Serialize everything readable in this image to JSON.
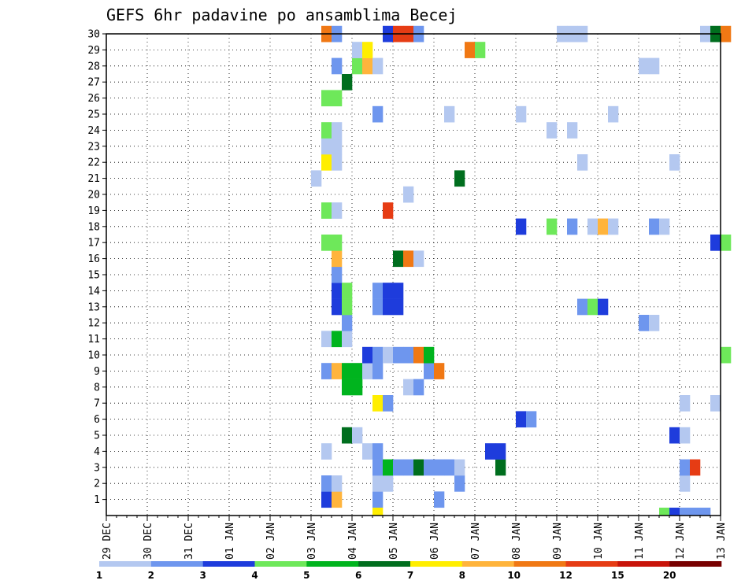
{
  "chart_data": {
    "type": "heatmap",
    "title": "GEFS 6hr padavine po ansamblima Becej",
    "y_labels": [
      "1",
      "2",
      "3",
      "4",
      "5",
      "6",
      "7",
      "8",
      "9",
      "10",
      "11",
      "12",
      "13",
      "14",
      "15",
      "16",
      "17",
      "18",
      "19",
      "20",
      "21",
      "22",
      "23",
      "24",
      "25",
      "26",
      "27",
      "28",
      "29",
      "30"
    ],
    "x_labels": [
      "29 DEC",
      "30 DEC",
      "31 DEC",
      "01 JAN",
      "02 JAN",
      "03 JAN",
      "04 JAN",
      "05 JAN",
      "06 JAN",
      "07 JAN",
      "08 JAN",
      "09 JAN",
      "10 JAN",
      "11 JAN",
      "12 JAN",
      "13 JAN"
    ],
    "x_unit": "6hr steps from 29 DEC 00Z",
    "colorbar": {
      "labels": [
        "1",
        "2",
        "3",
        "4",
        "5",
        "6",
        "7",
        "8",
        "10",
        "12",
        "15",
        "20"
      ],
      "colors": [
        "#b4c8f0",
        "#6e96ee",
        "#1e3cdc",
        "#6ee85a",
        "#00b41e",
        "#006e1e",
        "#ffee00",
        "#ffb43c",
        "#f07814",
        "#e63c14",
        "#c8140a",
        "#780000"
      ]
    },
    "cells": [
      [
        1,
        21,
        2
      ],
      [
        1,
        22,
        7
      ],
      [
        1,
        26,
        1
      ],
      [
        1,
        32,
        1
      ],
      [
        2,
        21,
        1
      ],
      [
        2,
        22,
        0
      ],
      [
        2,
        26,
        0
      ],
      [
        2,
        27,
        0
      ],
      [
        2,
        34,
        1
      ],
      [
        2,
        56,
        0
      ],
      [
        3,
        26,
        1
      ],
      [
        3,
        27,
        4
      ],
      [
        3,
        28,
        1
      ],
      [
        3,
        29,
        1
      ],
      [
        3,
        30,
        5
      ],
      [
        3,
        31,
        1
      ],
      [
        3,
        32,
        1
      ],
      [
        3,
        33,
        1
      ],
      [
        3,
        34,
        0
      ],
      [
        3,
        38,
        5
      ],
      [
        3,
        56,
        1
      ],
      [
        3,
        57,
        9
      ],
      [
        4,
        21,
        0
      ],
      [
        4,
        25,
        0
      ],
      [
        4,
        26,
        1
      ],
      [
        4,
        37,
        2
      ],
      [
        4,
        38,
        2
      ],
      [
        5,
        23,
        5
      ],
      [
        5,
        24,
        0
      ],
      [
        5,
        55,
        2
      ],
      [
        5,
        56,
        0
      ],
      [
        6,
        40,
        2
      ],
      [
        6,
        41,
        1
      ],
      [
        7,
        26,
        6
      ],
      [
        7,
        27,
        1
      ],
      [
        7,
        56,
        0
      ],
      [
        7,
        59,
        0
      ],
      [
        8,
        23,
        4
      ],
      [
        8,
        24,
        4
      ],
      [
        8,
        29,
        0
      ],
      [
        8,
        30,
        1
      ],
      [
        9,
        21,
        1
      ],
      [
        9,
        22,
        7
      ],
      [
        9,
        23,
        4
      ],
      [
        9,
        24,
        4
      ],
      [
        9,
        25,
        0
      ],
      [
        9,
        26,
        1
      ],
      [
        9,
        31,
        1
      ],
      [
        9,
        32,
        8
      ],
      [
        10,
        25,
        2
      ],
      [
        10,
        26,
        1
      ],
      [
        10,
        27,
        0
      ],
      [
        10,
        28,
        1
      ],
      [
        10,
        29,
        1
      ],
      [
        10,
        30,
        8
      ],
      [
        10,
        31,
        4
      ],
      [
        10,
        60,
        3
      ],
      [
        11,
        21,
        0
      ],
      [
        11,
        22,
        4
      ],
      [
        11,
        23,
        0
      ],
      [
        12,
        23,
        1
      ],
      [
        12,
        52,
        1
      ],
      [
        12,
        53,
        0
      ],
      [
        13,
        22,
        2
      ],
      [
        13,
        23,
        3
      ],
      [
        13,
        26,
        1
      ],
      [
        13,
        27,
        2
      ],
      [
        13,
        28,
        2
      ],
      [
        13,
        46,
        1
      ],
      [
        13,
        47,
        3
      ],
      [
        13,
        48,
        2
      ],
      [
        14,
        22,
        2
      ],
      [
        14,
        23,
        3
      ],
      [
        14,
        26,
        1
      ],
      [
        14,
        27,
        2
      ],
      [
        14,
        28,
        2
      ],
      [
        15,
        22,
        1
      ],
      [
        16,
        22,
        7
      ],
      [
        16,
        28,
        5
      ],
      [
        16,
        29,
        8
      ],
      [
        16,
        30,
        0
      ],
      [
        17,
        21,
        3
      ],
      [
        17,
        22,
        3
      ],
      [
        17,
        59,
        2
      ],
      [
        17,
        60,
        3
      ],
      [
        18,
        40,
        2
      ],
      [
        18,
        43,
        3
      ],
      [
        18,
        45,
        1
      ],
      [
        18,
        47,
        0
      ],
      [
        18,
        48,
        7
      ],
      [
        18,
        49,
        0
      ],
      [
        18,
        53,
        1
      ],
      [
        18,
        54,
        0
      ],
      [
        19,
        21,
        3
      ],
      [
        19,
        22,
        0
      ],
      [
        19,
        27,
        9
      ],
      [
        20,
        29,
        0
      ],
      [
        21,
        20,
        0
      ],
      [
        21,
        34,
        5
      ],
      [
        22,
        21,
        6
      ],
      [
        22,
        22,
        0
      ],
      [
        22,
        46,
        0
      ],
      [
        22,
        55,
        0
      ],
      [
        23,
        21,
        0
      ],
      [
        23,
        22,
        0
      ],
      [
        24,
        21,
        3
      ],
      [
        24,
        22,
        0
      ],
      [
        24,
        43,
        0
      ],
      [
        24,
        45,
        0
      ],
      [
        25,
        26,
        1
      ],
      [
        25,
        33,
        0
      ],
      [
        25,
        40,
        0
      ],
      [
        25,
        49,
        0
      ],
      [
        26,
        21,
        3
      ],
      [
        26,
        22,
        3
      ],
      [
        27,
        23,
        5
      ],
      [
        28,
        22,
        1
      ],
      [
        28,
        24,
        3
      ],
      [
        28,
        25,
        7
      ],
      [
        28,
        26,
        0
      ],
      [
        28,
        52,
        0
      ],
      [
        28,
        53,
        0
      ],
      [
        29,
        24,
        0
      ],
      [
        29,
        25,
        6
      ],
      [
        29,
        35,
        8
      ],
      [
        29,
        36,
        3
      ],
      [
        30,
        21,
        8
      ],
      [
        30,
        22,
        1
      ],
      [
        30,
        27,
        2
      ],
      [
        30,
        28,
        9
      ],
      [
        30,
        29,
        9
      ],
      [
        30,
        30,
        1
      ],
      [
        30,
        44,
        0
      ],
      [
        30,
        45,
        0
      ],
      [
        30,
        46,
        0
      ],
      [
        30,
        58,
        0
      ],
      [
        30,
        59,
        5
      ],
      [
        30,
        60,
        8
      ]
    ],
    "bottom_row": [
      [
        26,
        6
      ],
      [
        54,
        3
      ],
      [
        55,
        2
      ],
      [
        56,
        1
      ],
      [
        57,
        1
      ],
      [
        58,
        1
      ]
    ]
  }
}
